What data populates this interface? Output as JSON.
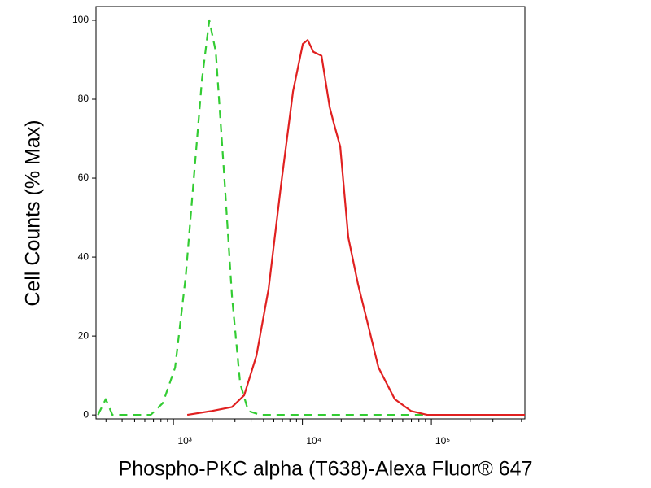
{
  "chart_data": {
    "type": "line",
    "x_label": "Phospho-PKC alpha (T638)-Alexa Fluor® 647",
    "y_label": "Cell Counts (% Max)",
    "log_x": true,
    "xlim": [
      251,
      531000
    ],
    "ylim": [
      -1,
      103.5
    ],
    "xticks": [
      {
        "value": 1000,
        "label": "10³"
      },
      {
        "value": 10000,
        "label": "10⁴"
      },
      {
        "value": 100000,
        "label": "10⁵"
      }
    ],
    "yticks": [
      0,
      20,
      40,
      60,
      80,
      100
    ],
    "series": [
      {
        "color": "#33cc33",
        "dashed": true,
        "x": [
          260,
          299,
          336,
          666,
          828,
          1030,
          1244,
          1439,
          1664,
          1896,
          2130,
          2461,
          2845,
          3290,
          3803,
          4730,
          350000
        ],
        "values": [
          0,
          4,
          0,
          0,
          3,
          12,
          35,
          60,
          85,
          100,
          92,
          62,
          30,
          8,
          1,
          0,
          0
        ]
      },
      {
        "color": "#e02020",
        "dashed": false,
        "x": [
          1280,
          1982,
          2845,
          3540,
          4400,
          5470,
          6810,
          8460,
          10070,
          10990,
          12160,
          14070,
          16270,
          17490,
          19640,
          22700,
          27040,
          32200,
          38900,
          52000,
          69500,
          93000,
          531000
        ],
        "values": [
          0,
          1,
          2,
          5,
          15,
          32,
          58,
          82,
          94,
          95,
          92,
          91,
          78,
          74,
          68,
          45,
          33,
          23,
          12,
          4,
          1,
          0,
          0
        ]
      }
    ]
  }
}
